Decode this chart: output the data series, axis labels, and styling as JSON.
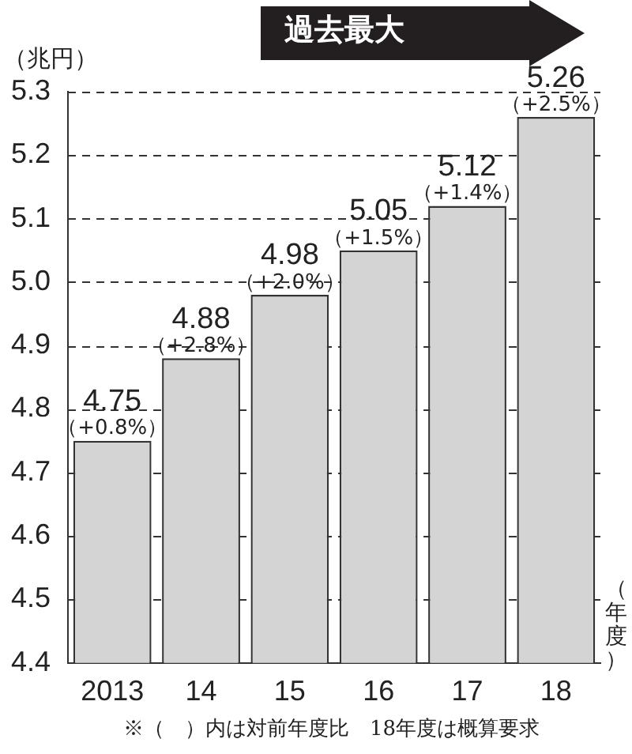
{
  "chart_data": {
    "type": "bar",
    "categories": [
      "2013",
      "14",
      "15",
      "16",
      "17",
      "18"
    ],
    "values": [
      4.75,
      4.88,
      4.98,
      5.05,
      5.12,
      5.26
    ],
    "color": "#d4d4d4",
    "ylabel": "（兆円）",
    "xlabel": "（年度）",
    "ylim": [
      4.4,
      5.3
    ],
    "yticks": [
      4.4,
      4.5,
      4.6,
      4.7,
      4.8,
      4.9,
      {
        "value": 5,
        "label": "5.0"
      },
      5.1,
      5.2,
      5.3
    ],
    "grid": "y",
    "line_style": "dashed",
    "data_labels": true,
    "annotations": [
      "過去最大",
      "※（　）内は対前年度比　18年度は概算要求",
      {
        "text": "（+0.8%）",
        "x": "2013",
        "y": 4.75
      },
      {
        "text": "（+2.8%）",
        "x": "14",
        "y": 4.88
      },
      {
        "text": "（+2.0%）",
        "x": "15",
        "y": 4.98
      },
      {
        "text": "（+1.5%）",
        "x": "16",
        "y": 5.05
      },
      {
        "text": "（+1.4%）",
        "x": "17",
        "y": 5.12
      },
      {
        "text": "（+2.5%）",
        "x": "18",
        "y": 5.26
      }
    ]
  }
}
